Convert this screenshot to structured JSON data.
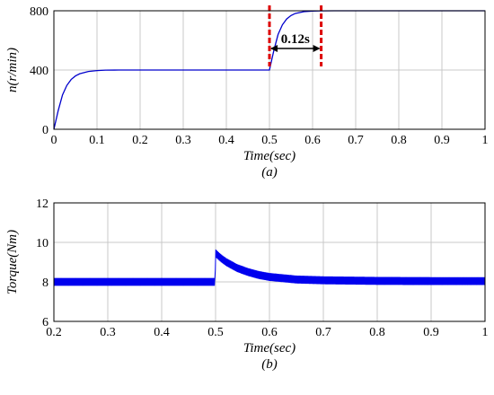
{
  "chart_data": [
    {
      "type": "line",
      "caption": "(a)",
      "xlabel": "Time(sec)",
      "ylabel": "n(r/min)",
      "xlim": [
        0,
        1
      ],
      "ylim": [
        0,
        800
      ],
      "xticks": [
        "0",
        "0.1",
        "0.2",
        "0.3",
        "0.4",
        "0.5",
        "0.6",
        "0.7",
        "0.8",
        "0.9",
        "1"
      ],
      "yticks": [
        "0",
        "400",
        "800"
      ],
      "grid": true,
      "line_color": "#0000cc",
      "series": [
        {
          "x": [
            0,
            0.01,
            0.02,
            0.03,
            0.04,
            0.05,
            0.06,
            0.08,
            0.1,
            0.12,
            0.15,
            0.3,
            0.499,
            0.5,
            0.51,
            0.52,
            0.53,
            0.54,
            0.55,
            0.56,
            0.58,
            0.6,
            0.62,
            0.65,
            0.8,
            1.0
          ],
          "y": [
            0,
            126,
            232,
            296,
            336,
            360,
            375,
            390,
            396,
            399,
            400,
            400,
            400,
            400,
            530,
            640,
            705,
            745,
            768,
            782,
            794,
            798,
            799,
            800,
            800,
            800
          ]
        }
      ],
      "annotation": {
        "label": "0.12s",
        "x_start": 0.5,
        "x_end": 0.62,
        "y": 700,
        "marker_color": "#dd0000"
      }
    },
    {
      "type": "line",
      "caption": "(b)",
      "xlabel": "Time(sec)",
      "ylabel": "Torque(Nm)",
      "xlim": [
        0.2,
        1
      ],
      "ylim": [
        6,
        12
      ],
      "xticks": [
        "0.2",
        "0.3",
        "0.4",
        "0.5",
        "0.6",
        "0.7",
        "0.8",
        "0.9",
        "1"
      ],
      "yticks": [
        "6",
        "8",
        "10",
        "12"
      ],
      "grid": true,
      "line_color": "#0000ee",
      "series": [
        {
          "x": [
            0.2,
            0.3,
            0.4,
            0.48,
            0.499,
            0.5,
            0.51,
            0.52,
            0.54,
            0.56,
            0.58,
            0.6,
            0.65,
            0.7,
            0.8,
            0.9,
            1.0
          ],
          "y": [
            8.0,
            8.0,
            8.0,
            8.0,
            8.0,
            9.45,
            9.2,
            9.0,
            8.7,
            8.5,
            8.35,
            8.25,
            8.12,
            8.08,
            8.05,
            8.04,
            8.04
          ],
          "ripple": 0.2
        }
      ]
    }
  ]
}
